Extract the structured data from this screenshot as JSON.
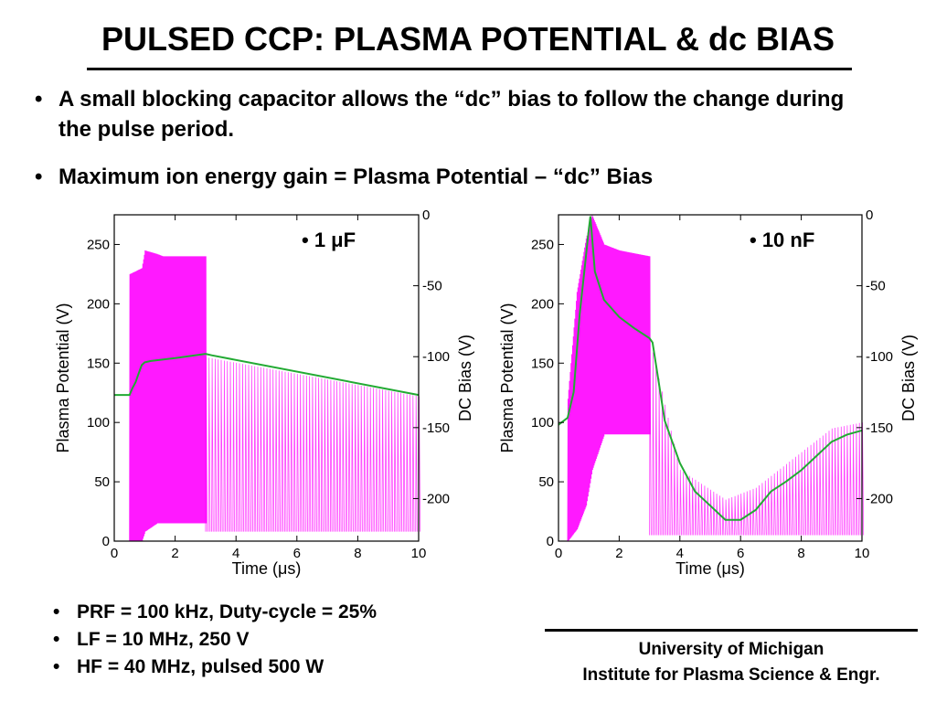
{
  "slide": {
    "title": "PULSED CCP: PLASMA POTENTIAL & dc BIAS",
    "bullets": [
      "A small blocking capacitor allows the “dc” bias to follow the change during the pulse period.",
      "Maximum ion energy gain = Plasma Potential – “dc” Bias"
    ],
    "bottom_bullets": [
      "PRF = 100 kHz, Duty-cycle = 25%",
      "LF = 10 MHz, 250 V",
      "HF = 40 MHz, pulsed 500 W"
    ],
    "affiliation": [
      "University of Michigan",
      "Institute for Plasma Science & Engr."
    ],
    "bullet_char": "•"
  },
  "colors": {
    "plasma": "#ff00ff",
    "dcbias": "#22aa33",
    "axis": "#000000"
  },
  "chart_data": [
    {
      "type": "line",
      "label": "1 μF",
      "xlabel": "Time (μs)",
      "ylabel": "Plasma Potential (V)",
      "y2label": "DC Bias (V)",
      "xlim": [
        0,
        10
      ],
      "ylim": [
        0,
        275
      ],
      "y2lim": [
        -230,
        0
      ],
      "xticks": [
        0,
        2,
        4,
        6,
        8,
        10
      ],
      "yticks": [
        0,
        50,
        100,
        150,
        200,
        250
      ],
      "y2ticks": [
        0,
        -50,
        -100,
        -150,
        -200
      ],
      "series": [
        {
          "axis": "left",
          "style": "rf-envelope",
          "pulse_on_envelope": {
            "x": [
              0.5,
              0.9,
              1.0,
              1.4,
              1.6,
              3.0
            ],
            "high": [
              225,
              230,
              245,
              242,
              240,
              240
            ],
            "low": [
              0,
              0,
              8,
              15,
              15,
              15
            ]
          },
          "pulse_off_envelope": {
            "x": [
              3.0,
              10.0
            ],
            "high": [
              155,
              122
            ],
            "low": [
              8,
              8
            ]
          }
        },
        {
          "axis": "right",
          "x": [
            0,
            0.5,
            0.6,
            0.7,
            0.8,
            0.9,
            1.0,
            1.2,
            2.0,
            3.0,
            3.2,
            10.0
          ],
          "y": [
            -127,
            -127,
            -122,
            -118,
            -112,
            -106,
            -104,
            -103,
            -101,
            -98,
            -99,
            -127
          ]
        }
      ]
    },
    {
      "type": "line",
      "label": "10 nF",
      "xlabel": "Time (μs)",
      "ylabel": "Plasma Potential (V)",
      "y2label": "DC Bias (V)",
      "xlim": [
        0,
        10
      ],
      "ylim": [
        0,
        275
      ],
      "y2lim": [
        -230,
        0
      ],
      "xticks": [
        0,
        2,
        4,
        6,
        8,
        10
      ],
      "yticks": [
        0,
        50,
        100,
        150,
        200,
        250
      ],
      "y2ticks": [
        0,
        -50,
        -100,
        -150,
        -200
      ],
      "series": [
        {
          "axis": "left",
          "style": "rf-envelope",
          "pulse_on_envelope": {
            "x": [
              0.3,
              0.6,
              0.9,
              1.1,
              1.5,
              2.0,
              3.0
            ],
            "high": [
              120,
              210,
              255,
              275,
              250,
              245,
              240
            ],
            "low": [
              0,
              10,
              30,
              60,
              90,
              90,
              90
            ]
          },
          "pulse_off_envelope": {
            "x": [
              3.0,
              4.0,
              5.5,
              6.5,
              8.0,
              9.0,
              10.0
            ],
            "high": [
              170,
              60,
              35,
              45,
              75,
              95,
              100
            ],
            "low": [
              5,
              5,
              5,
              5,
              5,
              5,
              5
            ]
          }
        },
        {
          "axis": "right",
          "x": [
            0,
            0.3,
            0.5,
            0.7,
            0.9,
            1.0,
            1.05,
            1.2,
            1.5,
            2.0,
            2.5,
            3.0,
            3.1,
            3.5,
            4.0,
            4.5,
            5.0,
            5.5,
            6.0,
            6.5,
            7.0,
            7.5,
            8.0,
            8.5,
            9.0,
            9.5,
            10.0
          ],
          "y": [
            -148,
            -143,
            -125,
            -70,
            -30,
            -10,
            -1,
            -40,
            -60,
            -72,
            -80,
            -87,
            -90,
            -145,
            -175,
            -195,
            -205,
            -215,
            -215,
            -208,
            -195,
            -188,
            -180,
            -170,
            -160,
            -155,
            -152
          ]
        }
      ]
    }
  ]
}
